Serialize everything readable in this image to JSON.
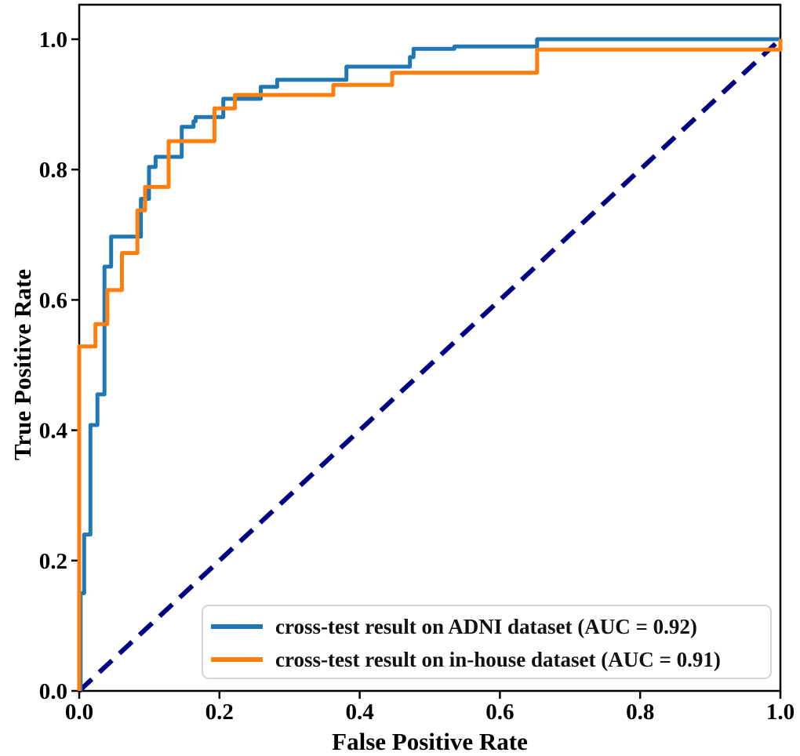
{
  "figure": {
    "xlabel": "False Positive Rate",
    "ylabel": "True Positive Rate"
  },
  "chart_data": {
    "type": "line",
    "subtype": "roc-step-curves",
    "title": "",
    "xlabel": "False Positive Rate",
    "ylabel": "True Positive Rate",
    "xlim": [
      0,
      1.0
    ],
    "ylim": [
      0,
      1.053
    ],
    "grid": false,
    "legend_position": "lower right",
    "x_ticks": [
      {
        "value": 0.0,
        "label": "0.0"
      },
      {
        "value": 0.2,
        "label": "0.2"
      },
      {
        "value": 0.4,
        "label": "0.4"
      },
      {
        "value": 0.6,
        "label": "0.6"
      },
      {
        "value": 0.8,
        "label": "0.8"
      },
      {
        "value": 1.0,
        "label": "1.0"
      }
    ],
    "y_ticks": [
      {
        "value": 0.0,
        "label": "0.0"
      },
      {
        "value": 0.2,
        "label": "0.2"
      },
      {
        "value": 0.4,
        "label": "0.4"
      },
      {
        "value": 0.6,
        "label": "0.6"
      },
      {
        "value": 0.8,
        "label": "0.8"
      },
      {
        "value": 1.0,
        "label": "1.0"
      }
    ],
    "series": [
      {
        "name": "adni-cross-test",
        "label": "cross-test result on ADNI dataset (AUC = 0.92)",
        "auc": 0.92,
        "color": "#1f77b4",
        "line_width": 5,
        "points": [
          [
            0.002,
            0
          ],
          [
            0.002,
            0.15
          ],
          [
            0.007,
            0.15
          ],
          [
            0.007,
            0.24
          ],
          [
            0.016,
            0.24
          ],
          [
            0.016,
            0.408
          ],
          [
            0.026,
            0.408
          ],
          [
            0.026,
            0.455
          ],
          [
            0.036,
            0.455
          ],
          [
            0.036,
            0.651
          ],
          [
            0.0455,
            0.651
          ],
          [
            0.0455,
            0.697
          ],
          [
            0.088,
            0.697
          ],
          [
            0.088,
            0.755
          ],
          [
            0.0996,
            0.755
          ],
          [
            0.0996,
            0.804
          ],
          [
            0.109,
            0.804
          ],
          [
            0.109,
            0.8195
          ],
          [
            0.1462,
            0.8195
          ],
          [
            0.1462,
            0.8656
          ],
          [
            0.163,
            0.8656
          ],
          [
            0.163,
            0.874
          ],
          [
            0.166,
            0.874
          ],
          [
            0.166,
            0.8805
          ],
          [
            0.2055,
            0.8805
          ],
          [
            0.2055,
            0.9085
          ],
          [
            0.259,
            0.9085
          ],
          [
            0.259,
            0.927
          ],
          [
            0.2823,
            0.927
          ],
          [
            0.2823,
            0.9378
          ],
          [
            0.3811,
            0.9378
          ],
          [
            0.3811,
            0.9579
          ],
          [
            0.4717,
            0.9579
          ],
          [
            0.4717,
            0.9727
          ],
          [
            0.4769,
            0.9727
          ],
          [
            0.4769,
            0.9852
          ],
          [
            0.535,
            0.9852
          ],
          [
            0.535,
            0.9888
          ],
          [
            0.653,
            0.9888
          ],
          [
            0.653,
            1.0
          ],
          [
            1.0,
            1.0
          ]
        ]
      },
      {
        "name": "in-house-cross-test",
        "label": "cross-test result on in-house dataset (AUC = 0.91)",
        "auc": 0.91,
        "color": "#ff7f0e",
        "line_width": 5,
        "points": [
          [
            0,
            0
          ],
          [
            0,
            0.5286
          ],
          [
            0.0231,
            0.5286
          ],
          [
            0.0231,
            0.5628
          ],
          [
            0.04,
            0.5628
          ],
          [
            0.04,
            0.615
          ],
          [
            0.061,
            0.615
          ],
          [
            0.061,
            0.672
          ],
          [
            0.083,
            0.672
          ],
          [
            0.083,
            0.7373
          ],
          [
            0.094,
            0.7373
          ],
          [
            0.094,
            0.7733
          ],
          [
            0.1275,
            0.7733
          ],
          [
            0.1275,
            0.8436
          ],
          [
            0.1928,
            0.8436
          ],
          [
            0.1928,
            0.8937
          ],
          [
            0.222,
            0.8937
          ],
          [
            0.222,
            0.9145
          ],
          [
            0.3624,
            0.9145
          ],
          [
            0.3624,
            0.9298
          ],
          [
            0.4463,
            0.9298
          ],
          [
            0.4463,
            0.9486
          ],
          [
            0.653,
            0.9486
          ],
          [
            0.653,
            0.984
          ],
          [
            1.0,
            0.984
          ],
          [
            1.0,
            1.0
          ]
        ]
      }
    ],
    "reference_line": {
      "name": "chance-diagonal",
      "color": "#000080",
      "style": "dashed",
      "line_width": 6,
      "points": [
        [
          0,
          0
        ],
        [
          1,
          1
        ]
      ]
    }
  }
}
